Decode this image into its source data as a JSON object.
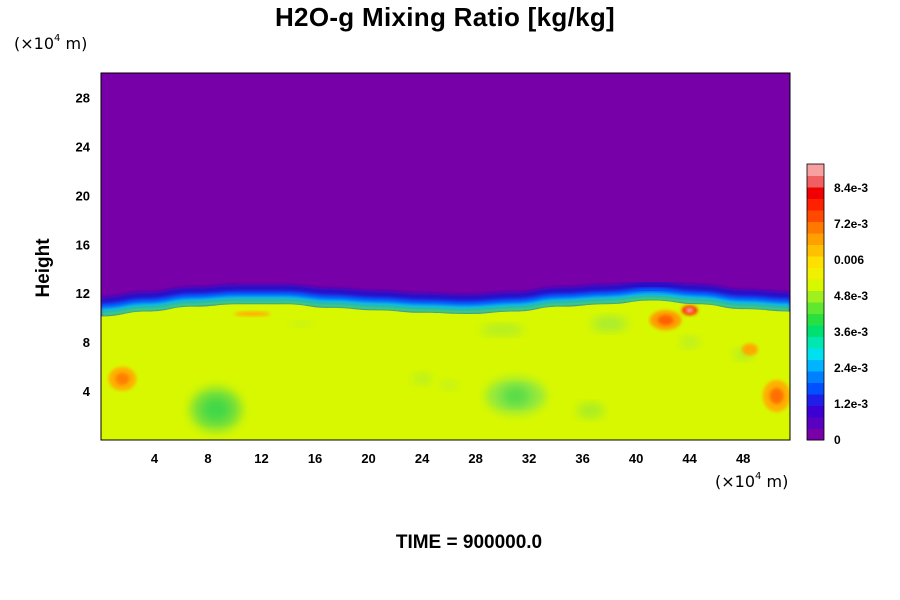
{
  "chart_data": {
    "type": "heatmap",
    "title": "H2O-g Mixing Ratio [kg/kg]",
    "ylabel": "Height",
    "y_unit": {
      "prefix": "(×10",
      "exp": "4",
      "suffix": " m)"
    },
    "x_unit": {
      "prefix": "(×10",
      "exp": "4",
      "suffix": " m)"
    },
    "xlim": [
      0,
      51.5
    ],
    "ylim": [
      0,
      30
    ],
    "x_ticks": [
      4,
      8,
      12,
      16,
      20,
      24,
      28,
      32,
      36,
      40,
      44,
      48
    ],
    "y_ticks": [
      4,
      8,
      12,
      16,
      20,
      24,
      28
    ],
    "x_tick_labels": [
      "4",
      "8",
      "12",
      "16",
      "20",
      "24",
      "28",
      "32",
      "36",
      "40",
      "44",
      "48"
    ],
    "y_tick_labels": [
      "4",
      "8",
      "12",
      "16",
      "20",
      "24",
      "28"
    ],
    "colorbar": {
      "min": 0,
      "max": 0.0092,
      "tick_values": [
        0,
        0.0012,
        0.0024,
        0.0036,
        0.0048,
        0.006,
        0.0072,
        0.0084
      ],
      "tick_labels": [
        "0",
        "1.2e-3",
        "2.4e-3",
        "3.6e-3",
        "4.8e-3",
        "0.006",
        "7.2e-3",
        "8.4e-3"
      ],
      "colors": [
        "#7800a8",
        "#5a00c0",
        "#3c00d4",
        "#1e1ee8",
        "#0050ff",
        "#0080ff",
        "#00b4ff",
        "#00e0f0",
        "#00e8b0",
        "#00e070",
        "#28e040",
        "#60e830",
        "#a0f020",
        "#d8f800",
        "#f0f000",
        "#ffe000",
        "#ffc000",
        "#ffa000",
        "#ff7800",
        "#ff4800",
        "#ff2000",
        "#f00000",
        "#f06060",
        "#f8a0a0"
      ]
    },
    "field": {
      "description_values": {
        "upper_dry_layer": 0,
        "lower_moist_layer": 0.0063
      },
      "interface_height": [
        11.0,
        11.4,
        11.8,
        12.0,
        12.0,
        11.7,
        11.5,
        11.3,
        11.2,
        11.4,
        11.8,
        12.0,
        12.3,
        12.0,
        11.6,
        11.4
      ]
    },
    "annotations": [
      {
        "text": "TIME = 900000.0"
      }
    ]
  },
  "colors": {
    "background": "#ffffff",
    "upper_layer": "#7800a8",
    "lower_layer": "#d8f800",
    "frame": "#000000"
  }
}
